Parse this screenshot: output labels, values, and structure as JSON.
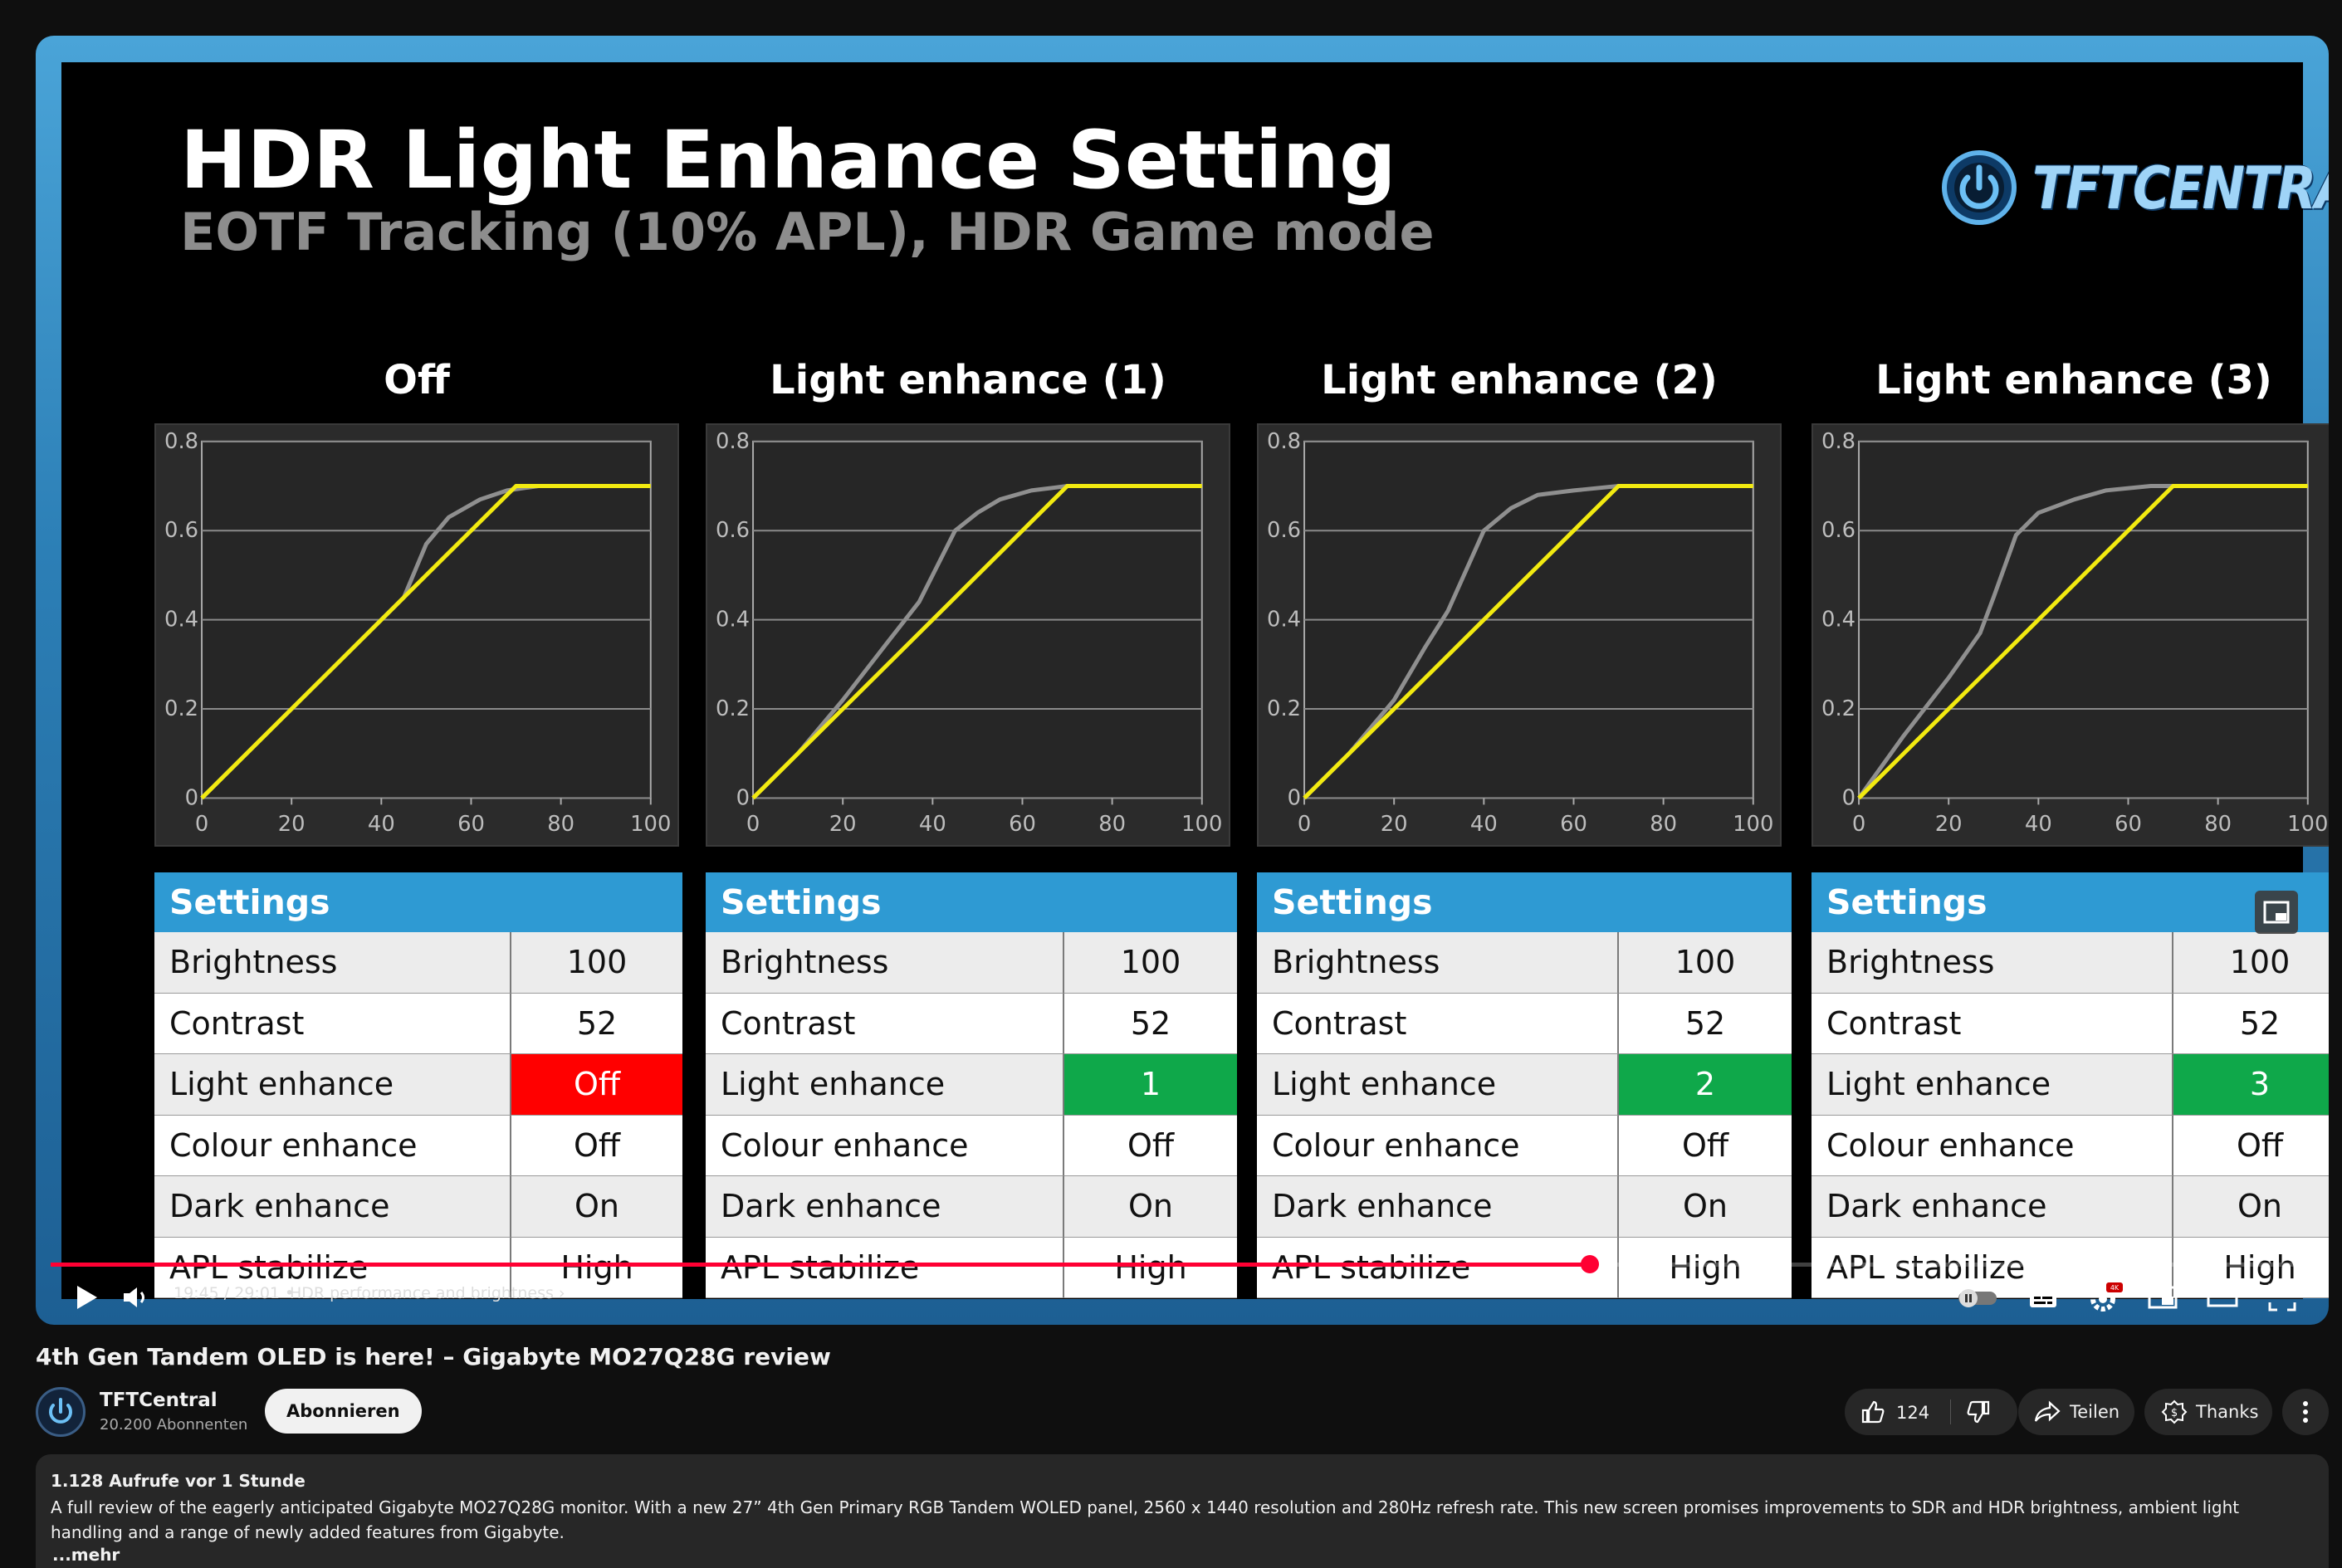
{
  "slide": {
    "title": "HDR Light Enhance Setting",
    "subtitle": "EOTF Tracking (10% APL), HDR Game mode",
    "logo_text": "TFTCENTRAL"
  },
  "panels": [
    {
      "title": "Off",
      "chart": {
        "xlim": [
          0,
          100
        ],
        "ylim": [
          0,
          0.8
        ],
        "x_ticks": [
          "0",
          "20",
          "40",
          "60",
          "80",
          "100"
        ],
        "y_ticks": [
          "0",
          "0.2",
          "0.4",
          "0.6",
          "0.8"
        ],
        "target": [
          [
            0,
            0
          ],
          [
            70,
            0.7
          ],
          [
            100,
            0.7
          ]
        ],
        "measured": [
          [
            0,
            0
          ],
          [
            5,
            0.05
          ],
          [
            20,
            0.2
          ],
          [
            40,
            0.4
          ],
          [
            45,
            0.45
          ],
          [
            50,
            0.57
          ],
          [
            55,
            0.63
          ],
          [
            62,
            0.67
          ],
          [
            68,
            0.69
          ],
          [
            75,
            0.7
          ],
          [
            100,
            0.7
          ]
        ]
      },
      "header": "Settings",
      "rows": [
        {
          "label": "Brightness",
          "value": "100",
          "highlight": ""
        },
        {
          "label": "Contrast",
          "value": "52",
          "highlight": ""
        },
        {
          "label": "Light enhance",
          "value": "Off",
          "highlight": "#ff0000"
        },
        {
          "label": "Colour enhance",
          "value": "Off",
          "highlight": ""
        },
        {
          "label": "Dark enhance",
          "value": "On",
          "highlight": ""
        },
        {
          "label": "APL stabilize",
          "value": "High",
          "highlight": ""
        }
      ]
    },
    {
      "title": "Light enhance (1)",
      "chart": {
        "xlim": [
          0,
          100
        ],
        "ylim": [
          0,
          0.8
        ],
        "x_ticks": [
          "0",
          "20",
          "40",
          "60",
          "80",
          "100"
        ],
        "y_ticks": [
          "0",
          "0.2",
          "0.4",
          "0.6",
          "0.8"
        ],
        "target": [
          [
            0,
            0
          ],
          [
            70,
            0.7
          ],
          [
            100,
            0.7
          ]
        ],
        "measured": [
          [
            0,
            0
          ],
          [
            10,
            0.1
          ],
          [
            20,
            0.22
          ],
          [
            30,
            0.35
          ],
          [
            37,
            0.44
          ],
          [
            45,
            0.6
          ],
          [
            50,
            0.64
          ],
          [
            55,
            0.67
          ],
          [
            62,
            0.69
          ],
          [
            70,
            0.7
          ],
          [
            100,
            0.7
          ]
        ]
      },
      "header": "Settings",
      "rows": [
        {
          "label": "Brightness",
          "value": "100",
          "highlight": ""
        },
        {
          "label": "Contrast",
          "value": "52",
          "highlight": ""
        },
        {
          "label": "Light enhance",
          "value": "1",
          "highlight": "#0fa84a"
        },
        {
          "label": "Colour enhance",
          "value": "Off",
          "highlight": ""
        },
        {
          "label": "Dark enhance",
          "value": "On",
          "highlight": ""
        },
        {
          "label": "APL stabilize",
          "value": "High",
          "highlight": ""
        }
      ]
    },
    {
      "title": "Light enhance (2)",
      "chart": {
        "xlim": [
          0,
          100
        ],
        "ylim": [
          0,
          0.8
        ],
        "x_ticks": [
          "0",
          "20",
          "40",
          "60",
          "80",
          "100"
        ],
        "y_ticks": [
          "0",
          "0.2",
          "0.4",
          "0.6",
          "0.8"
        ],
        "target": [
          [
            0,
            0
          ],
          [
            70,
            0.7
          ],
          [
            100,
            0.7
          ]
        ],
        "measured": [
          [
            0,
            0
          ],
          [
            10,
            0.1
          ],
          [
            20,
            0.22
          ],
          [
            27,
            0.34
          ],
          [
            32,
            0.42
          ],
          [
            40,
            0.6
          ],
          [
            46,
            0.65
          ],
          [
            52,
            0.68
          ],
          [
            60,
            0.69
          ],
          [
            70,
            0.7
          ],
          [
            100,
            0.7
          ]
        ]
      },
      "header": "Settings",
      "rows": [
        {
          "label": "Brightness",
          "value": "100",
          "highlight": ""
        },
        {
          "label": "Contrast",
          "value": "52",
          "highlight": ""
        },
        {
          "label": "Light enhance",
          "value": "2",
          "highlight": "#0fa84a"
        },
        {
          "label": "Colour enhance",
          "value": "Off",
          "highlight": ""
        },
        {
          "label": "Dark enhance",
          "value": "On",
          "highlight": ""
        },
        {
          "label": "APL stabilize",
          "value": "High",
          "highlight": ""
        }
      ]
    },
    {
      "title": "Light enhance (3)",
      "chart": {
        "xlim": [
          0,
          100
        ],
        "ylim": [
          0,
          0.8
        ],
        "x_ticks": [
          "0",
          "20",
          "40",
          "60",
          "80",
          "100"
        ],
        "y_ticks": [
          "0",
          "0.2",
          "0.4",
          "0.6",
          "0.8"
        ],
        "target": [
          [
            0,
            0
          ],
          [
            70,
            0.7
          ],
          [
            100,
            0.7
          ]
        ],
        "measured": [
          [
            0,
            0
          ],
          [
            5,
            0.07
          ],
          [
            10,
            0.14
          ],
          [
            20,
            0.27
          ],
          [
            27,
            0.37
          ],
          [
            30,
            0.45
          ],
          [
            35,
            0.59
          ],
          [
            40,
            0.64
          ],
          [
            48,
            0.67
          ],
          [
            55,
            0.69
          ],
          [
            65,
            0.7
          ],
          [
            100,
            0.7
          ]
        ]
      },
      "header": "Settings",
      "rows": [
        {
          "label": "Brightness",
          "value": "100",
          "highlight": ""
        },
        {
          "label": "Contrast",
          "value": "52",
          "highlight": ""
        },
        {
          "label": "Light enhance",
          "value": "3",
          "highlight": "#0fa84a"
        },
        {
          "label": "Colour enhance",
          "value": "Off",
          "highlight": ""
        },
        {
          "label": "Dark enhance",
          "value": "On",
          "highlight": ""
        },
        {
          "label": "APL stabilize",
          "value": "High",
          "highlight": ""
        }
      ]
    }
  ],
  "player": {
    "time": "19:45 / 29:01",
    "separator": "•",
    "chapter": "HDR performance and brightness",
    "progress": 0.68,
    "accent": "#ff0033"
  },
  "video": {
    "title": "4th Gen Tandem OLED is here! – Gigabyte MO27Q28G review",
    "channel": "TFTCentral",
    "subscribers": "20.200 Abonnenten",
    "subscribe_label": "Abonnieren",
    "likes": "124",
    "share_label": "Teilen",
    "thanks_label": "Thanks",
    "views_meta": "1.128 Aufrufe  vor 1 Stunde",
    "description": "A full review of the eagerly anticipated Gigabyte MO27Q28G monitor. With a new 27” 4th Gen Primary RGB Tandem WOLED panel, 2560 x 1440 resolution and 280Hz refresh rate. This new screen promises improvements to SDR and HDR brightness, ambient light handling and a range of newly added features from Gigabyte.",
    "more_label": "...mehr"
  },
  "icons": [
    "play-icon",
    "volume-icon",
    "chevron-right-icon",
    "autoplay-toggle-icon",
    "subtitles-icon",
    "settings-gear-icon",
    "miniplayer-icon",
    "theater-icon",
    "fullscreen-icon",
    "like-icon",
    "dislike-icon",
    "share-icon",
    "thanks-icon",
    "more-icon",
    "cast-icon"
  ]
}
